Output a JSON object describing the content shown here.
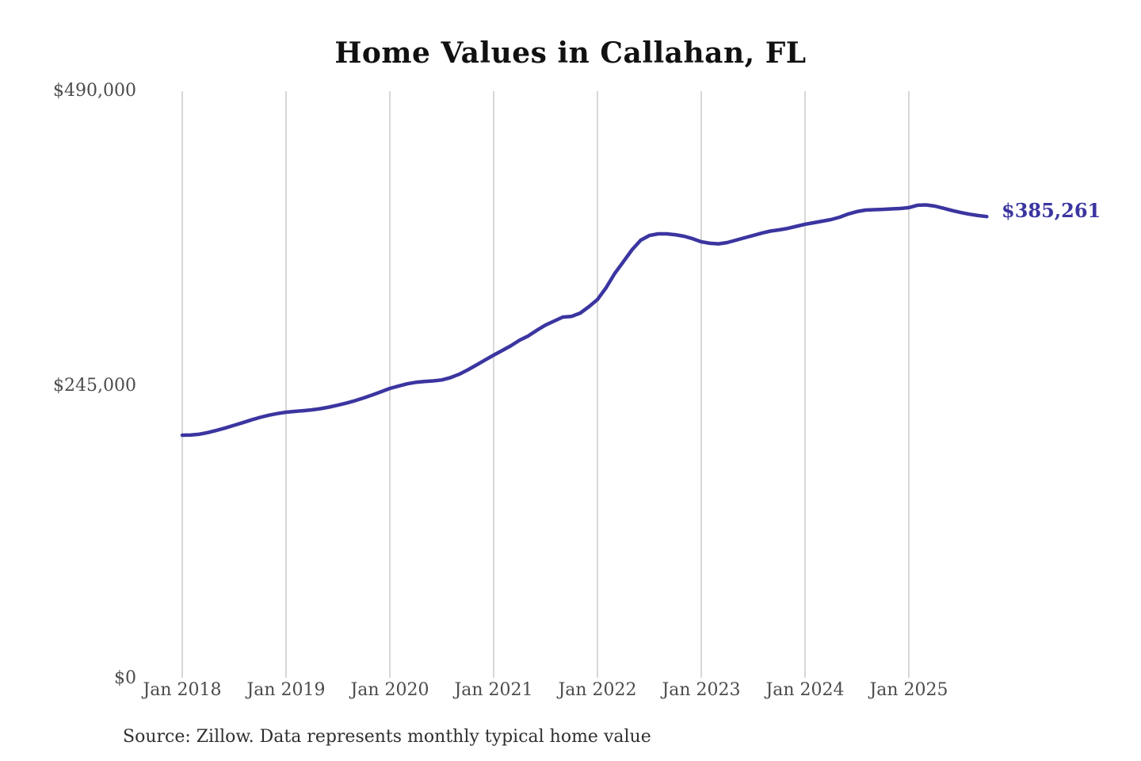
{
  "page": {
    "background": "#ffffff"
  },
  "chart_data": {
    "type": "line",
    "title": "Home Values in Callahan, FL",
    "source_note": "Source: Zillow. Data represents monthly typical home value",
    "end_label": "$385,261",
    "latest_value": 385261,
    "y_tick_labels": [
      "$490,000",
      "$245,000",
      "$0"
    ],
    "y_tick_values": [
      490000,
      245000,
      0
    ],
    "x_tick_labels": [
      "Jan 2018",
      "Jan 2019",
      "Jan 2020",
      "Jan 2021",
      "Jan 2022",
      "Jan 2023",
      "Jan 2024",
      "Jan 2025"
    ],
    "ylim": [
      0,
      490000
    ],
    "x_start": "2018-01",
    "x_end": "2025-10",
    "cadence": "monthly",
    "grid": "vertical-only",
    "legend": "none",
    "line_color": "#3b35a0",
    "grid_color": "#cacaca",
    "series": [
      {
        "name": "Typical home value",
        "values": [
          202600,
          202800,
          203500,
          204900,
          206700,
          208700,
          210900,
          213100,
          215400,
          217500,
          219300,
          220700,
          221800,
          222500,
          223100,
          223800,
          224800,
          226100,
          227700,
          229500,
          231500,
          233800,
          236300,
          239000,
          241700,
          243600,
          245500,
          246800,
          247500,
          248000,
          248800,
          250700,
          253500,
          257200,
          261200,
          265400,
          269500,
          273400,
          277400,
          282000,
          285500,
          290300,
          294600,
          298000,
          301300,
          301900,
          304600,
          309900,
          315900,
          325800,
          337700,
          347600,
          357600,
          365500,
          369400,
          370800,
          370800,
          370100,
          368800,
          366800,
          364200,
          362900,
          362500,
          363500,
          365500,
          367500,
          369400,
          371400,
          373100,
          374100,
          375400,
          377100,
          378800,
          380100,
          381400,
          382700,
          384700,
          387400,
          389400,
          390700,
          391000,
          391300,
          391700,
          392000,
          392700,
          394700,
          395000,
          394000,
          392200,
          390300,
          388600,
          387200,
          386100,
          385261
        ]
      }
    ]
  }
}
